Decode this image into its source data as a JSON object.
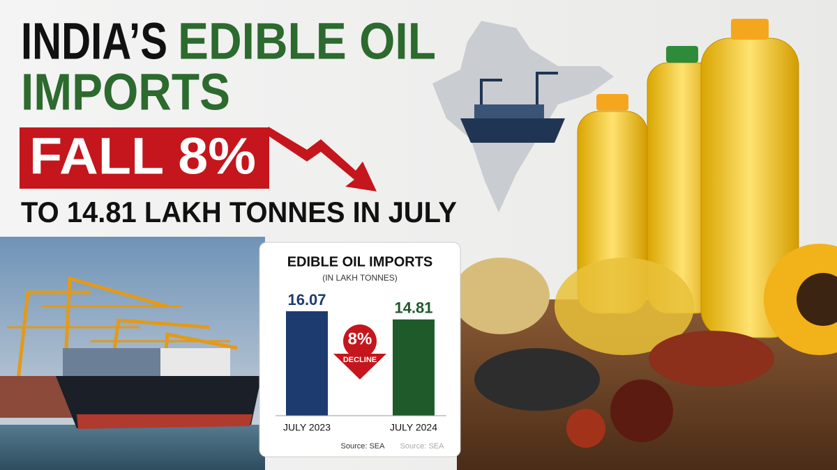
{
  "headline": {
    "word1": "INDIA’S",
    "word2": "EDIBLE OIL",
    "word3": "IMPORTS",
    "banner": "FALL 8%",
    "subline": "TO 14.81 LAKH TONNES IN JULY"
  },
  "chart_data": {
    "type": "bar",
    "title": "EDIBLE OIL IMPORTS",
    "subtitle": "(IN LAKH TONNES)",
    "categories": [
      "JULY 2023",
      "JULY 2024"
    ],
    "values": [
      16.07,
      14.81
    ],
    "colors": [
      "#1d3b6f",
      "#1f5a2b"
    ],
    "annotation": {
      "value": "8%",
      "label": "DECLINE"
    },
    "source": "Source: SEA"
  }
}
